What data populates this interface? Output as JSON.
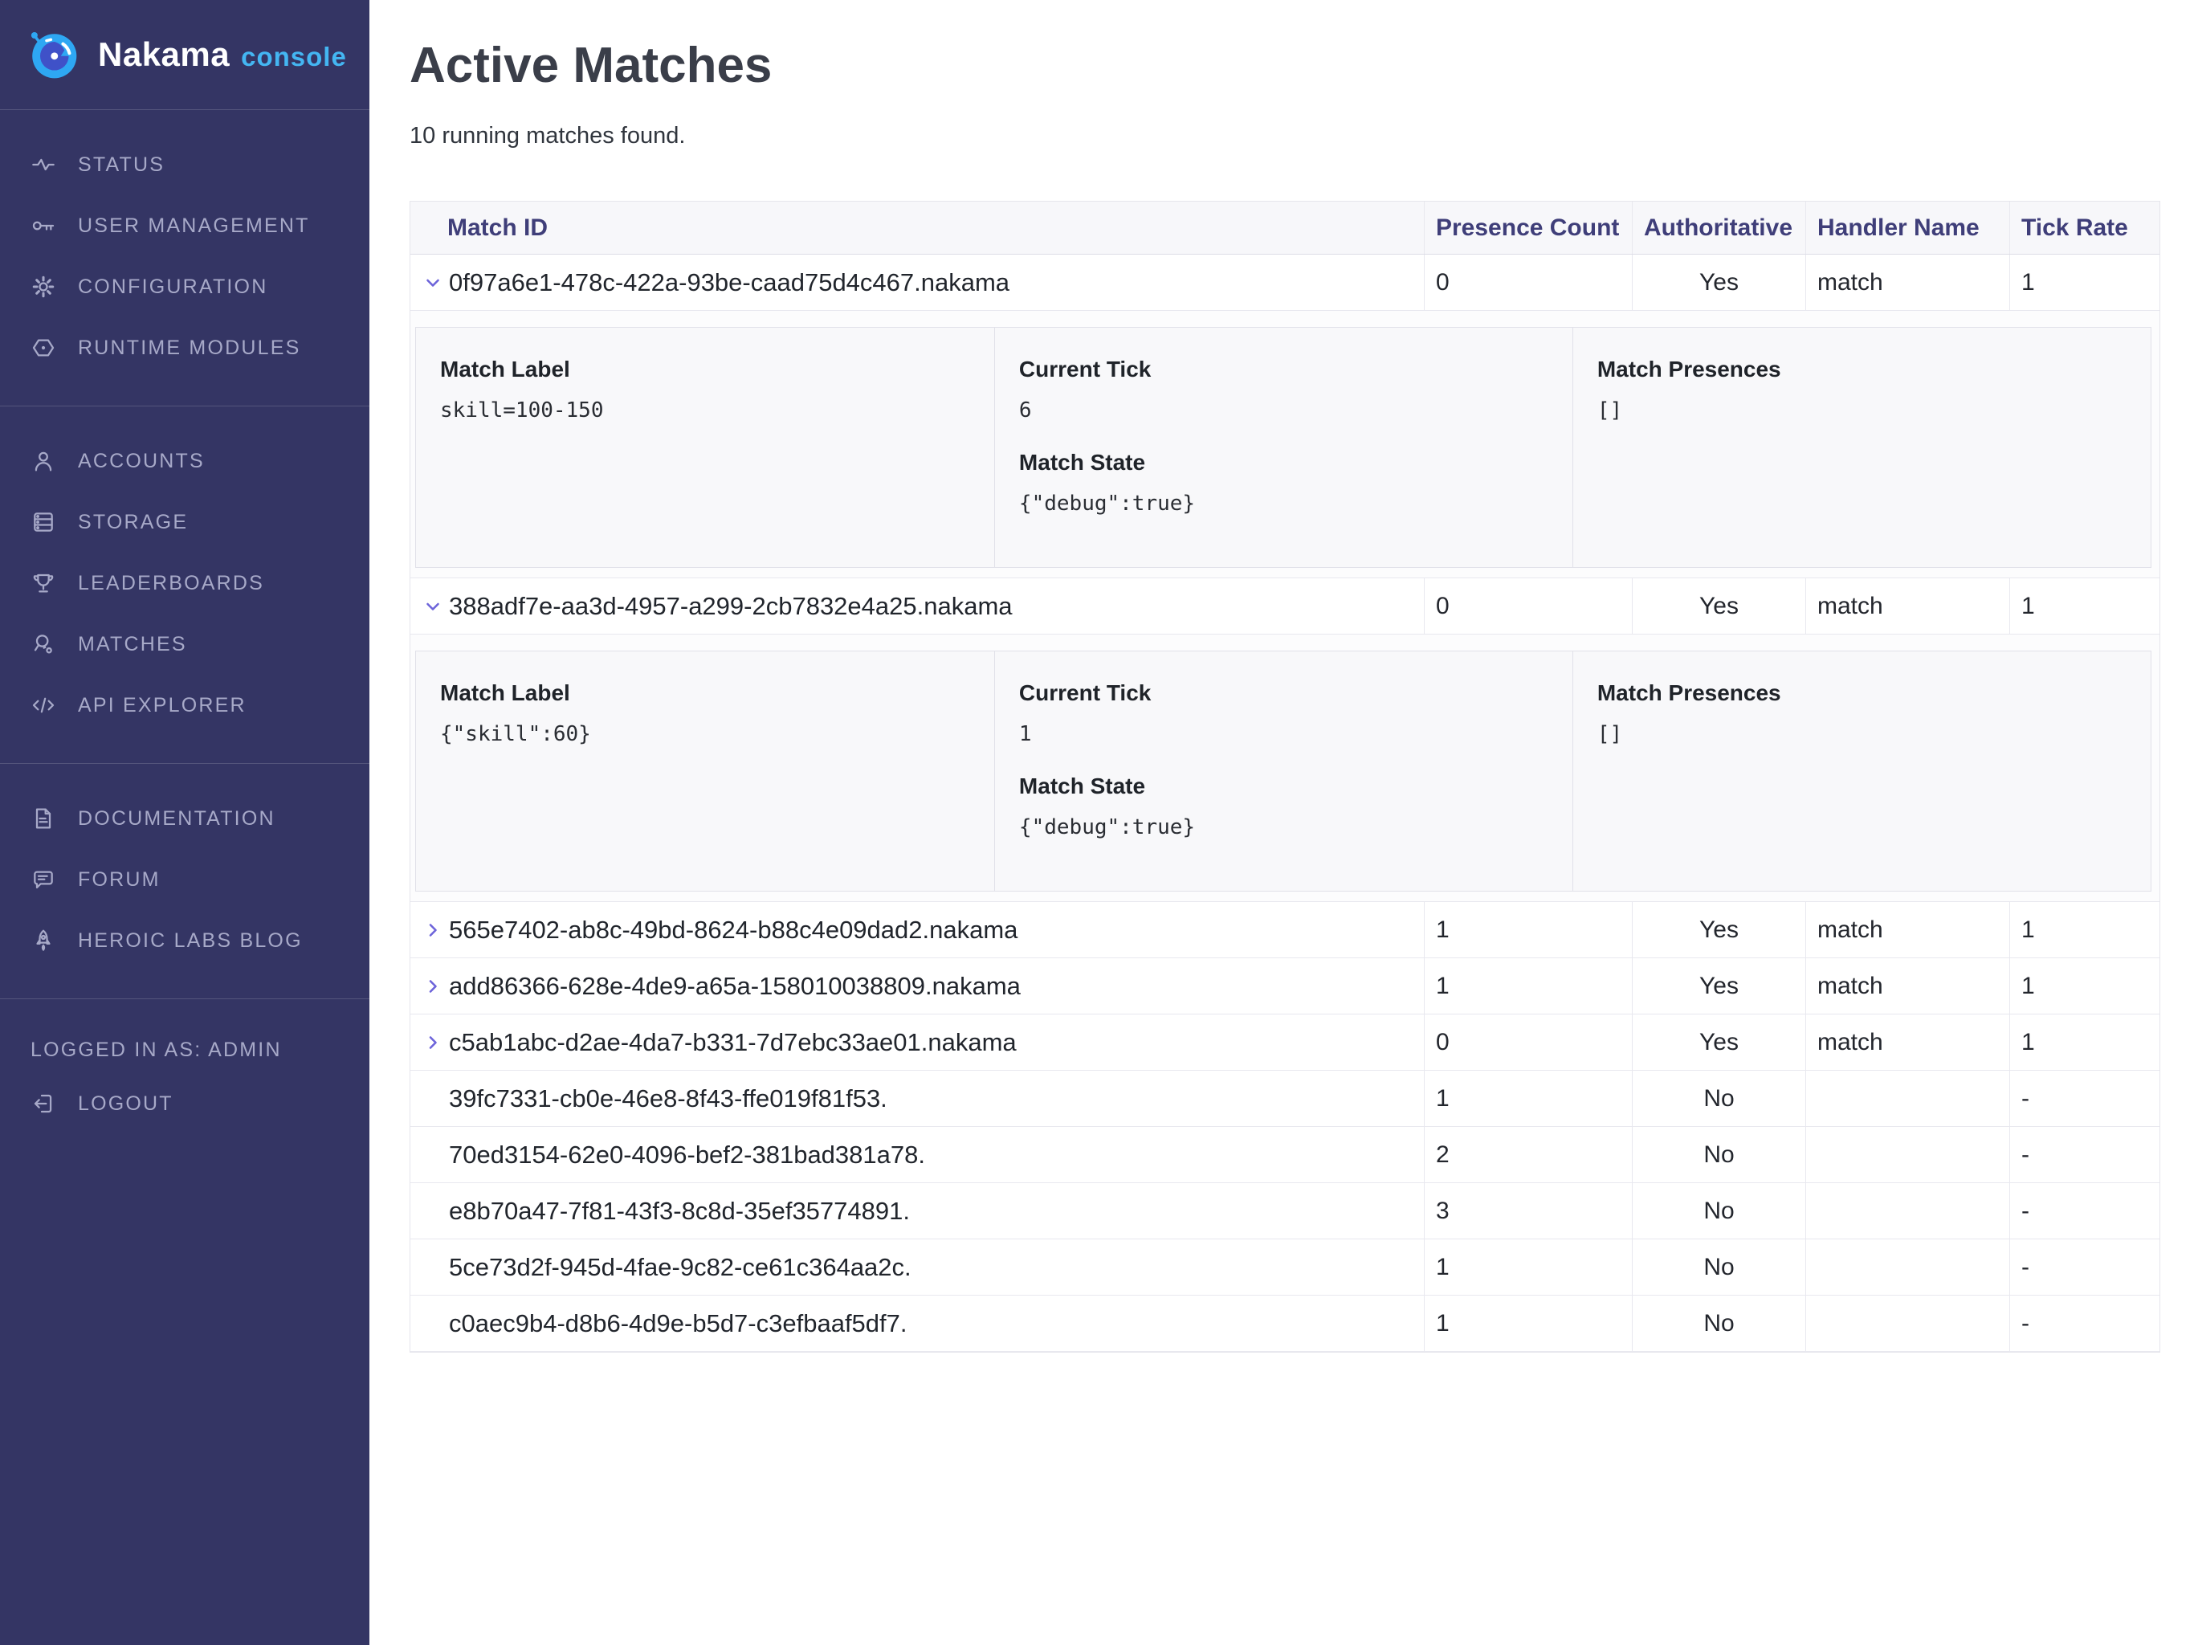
{
  "brand": {
    "name": "Nakama",
    "suffix": "console"
  },
  "sidebar": {
    "sections": [
      {
        "items": [
          {
            "icon": "status-pulse-icon",
            "label": "STATUS"
          },
          {
            "icon": "key-icon",
            "label": "USER MANAGEMENT"
          },
          {
            "icon": "gear-icon",
            "label": "CONFIGURATION"
          },
          {
            "icon": "hexagon-module-icon",
            "label": "RUNTIME MODULES"
          }
        ]
      },
      {
        "items": [
          {
            "icon": "person-icon",
            "label": "ACCOUNTS"
          },
          {
            "icon": "server-stack-icon",
            "label": "STORAGE"
          },
          {
            "icon": "trophy-icon",
            "label": "LEADERBOARDS"
          },
          {
            "icon": "racket-ball-icon",
            "label": "MATCHES"
          },
          {
            "icon": "code-icon",
            "label": "API EXPLORER"
          }
        ]
      },
      {
        "items": [
          {
            "icon": "document-icon",
            "label": "DOCUMENTATION"
          },
          {
            "icon": "chat-bubble-icon",
            "label": "FORUM"
          },
          {
            "icon": "rocket-icon",
            "label": "HEROIC LABS BLOG"
          }
        ]
      }
    ],
    "logged_in_as": "LOGGED IN AS: ADMIN",
    "logout": {
      "icon": "logout-icon",
      "label": "LOGOUT"
    }
  },
  "page": {
    "title": "Active Matches",
    "subtitle": "10 running matches found."
  },
  "table": {
    "columns": [
      "Match ID",
      "Presence Count",
      "Authoritative",
      "Handler Name",
      "Tick Rate"
    ],
    "detail_labels": {
      "match_label": "Match Label",
      "current_tick": "Current Tick",
      "match_state": "Match State",
      "match_presences": "Match Presences"
    },
    "rows": [
      {
        "id": "0f97a6e1-478c-422a-93be-caad75d4c467.nakama",
        "chevron": "down",
        "presence_count": "0",
        "authoritative": "Yes",
        "handler_name": "match",
        "tick_rate": "1",
        "detail": {
          "match_label": "skill=100-150",
          "current_tick": "6",
          "match_state": "{\"debug\":true}",
          "match_presences": "[]"
        }
      },
      {
        "id": "388adf7e-aa3d-4957-a299-2cb7832e4a25.nakama",
        "chevron": "down",
        "presence_count": "0",
        "authoritative": "Yes",
        "handler_name": "match",
        "tick_rate": "1",
        "detail": {
          "match_label": "{\"skill\":60}",
          "current_tick": "1",
          "match_state": "{\"debug\":true}",
          "match_presences": "[]"
        }
      },
      {
        "id": "565e7402-ab8c-49bd-8624-b88c4e09dad2.nakama",
        "chevron": "right",
        "presence_count": "1",
        "authoritative": "Yes",
        "handler_name": "match",
        "tick_rate": "1"
      },
      {
        "id": "add86366-628e-4de9-a65a-158010038809.nakama",
        "chevron": "right",
        "presence_count": "1",
        "authoritative": "Yes",
        "handler_name": "match",
        "tick_rate": "1"
      },
      {
        "id": "c5ab1abc-d2ae-4da7-b331-7d7ebc33ae01.nakama",
        "chevron": "right",
        "presence_count": "0",
        "authoritative": "Yes",
        "handler_name": "match",
        "tick_rate": "1"
      },
      {
        "id": "39fc7331-cb0e-46e8-8f43-ffe019f81f53.",
        "chevron": null,
        "presence_count": "1",
        "authoritative": "No",
        "handler_name": "",
        "tick_rate": "-"
      },
      {
        "id": "70ed3154-62e0-4096-bef2-381bad381a78.",
        "chevron": null,
        "presence_count": "2",
        "authoritative": "No",
        "handler_name": "",
        "tick_rate": "-"
      },
      {
        "id": "e8b70a47-7f81-43f3-8c8d-35ef35774891.",
        "chevron": null,
        "presence_count": "3",
        "authoritative": "No",
        "handler_name": "",
        "tick_rate": "-"
      },
      {
        "id": "5ce73d2f-945d-4fae-9c82-ce61c364aa2c.",
        "chevron": null,
        "presence_count": "1",
        "authoritative": "No",
        "handler_name": "",
        "tick_rate": "-"
      },
      {
        "id": "c0aec9b4-d8b6-4d9e-b5d7-c3efbaaf5df7.",
        "chevron": null,
        "presence_count": "1",
        "authoritative": "No",
        "handler_name": "",
        "tick_rate": "-"
      }
    ]
  },
  "colors": {
    "sidebar_bg": "#343564",
    "accent_blue": "#44b6f2",
    "header_text": "#3f3e79",
    "chevron": "#6d64da"
  }
}
